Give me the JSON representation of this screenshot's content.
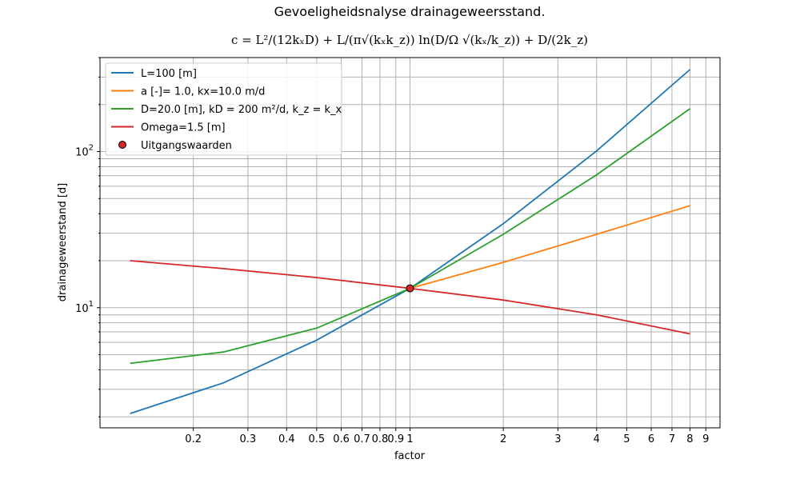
{
  "chart_data": {
    "type": "line",
    "title": "Gevoeligheidsnalyse drainageweersstand.",
    "formula": "c = L²/(12kₓD) + L/(π√(kₓk_z)) ln(D/Ω √(kₓ/k_z)) + D/(2k_z)",
    "xlabel": "factor",
    "ylabel": "drainageweerstand [d]",
    "xscale": "log",
    "yscale": "log",
    "xlim": [
      0.1,
      10
    ],
    "ylim": [
      1.7,
      400
    ],
    "grid": true,
    "legend_position": "upper-left",
    "x_tick_labels": [
      "0.2",
      "0.3",
      "0.4",
      "0.5",
      "0.6",
      "0.7",
      "0.8",
      "0.9",
      "1",
      "2",
      "3",
      "4",
      "5",
      "6",
      "7",
      "8",
      "9"
    ],
    "y_tick_labels": [
      "10^1",
      "10^2"
    ],
    "x": [
      0.125,
      0.25,
      0.5,
      1,
      2,
      4,
      8
    ],
    "series": [
      {
        "name": "L=100 [m]",
        "color": "#1f77b4",
        "values": [
          2.1,
          3.3,
          6.2,
          13.3,
          34.5,
          101,
          335
        ]
      },
      {
        "name": "a [-]= 1.0, kx=10.0 m/d",
        "color": "#ff7f0e",
        "values": [
          null,
          null,
          null,
          13.3,
          19.5,
          29.5,
          45
        ]
      },
      {
        "name": "D=20.0 [m], kD = 200 m²/d, k_z = k_x",
        "color": "#2ca02c",
        "values": [
          4.4,
          5.2,
          7.4,
          13.3,
          29.5,
          71,
          188
        ]
      },
      {
        "name": "Omega=1.5 [m]",
        "color": "#d62728",
        "values": [
          20,
          17.8,
          15.6,
          13.3,
          11.2,
          9.0,
          6.8
        ]
      }
    ],
    "marker": {
      "name": "Uitgangswaarden",
      "x": 1,
      "y": 13.3,
      "color": "#d62728"
    }
  }
}
